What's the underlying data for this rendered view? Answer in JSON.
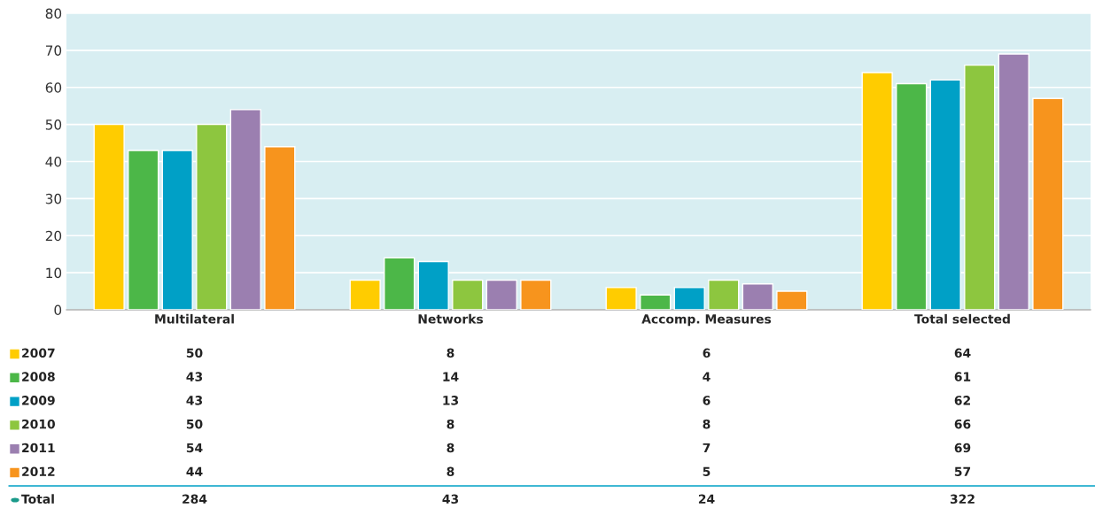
{
  "chart_data": {
    "type": "bar",
    "categories": [
      "Multilateral",
      "Networks",
      "Accomp. Measures",
      "Total selected"
    ],
    "series": [
      {
        "name": "2007",
        "color": "#ffcc00",
        "values": [
          50,
          8,
          6,
          64
        ]
      },
      {
        "name": "2008",
        "color": "#4cb748",
        "values": [
          43,
          14,
          4,
          61
        ]
      },
      {
        "name": "2009",
        "color": "#00a0c6",
        "values": [
          43,
          13,
          6,
          62
        ]
      },
      {
        "name": "2010",
        "color": "#8dc63f",
        "values": [
          50,
          8,
          8,
          66
        ]
      },
      {
        "name": "2011",
        "color": "#9b7fb0",
        "values": [
          54,
          8,
          7,
          69
        ]
      },
      {
        "name": "2012",
        "color": "#f7941d",
        "values": [
          44,
          8,
          5,
          57
        ]
      }
    ],
    "ylim": [
      0,
      80
    ],
    "yticks": [
      0,
      10,
      20,
      30,
      40,
      50,
      60,
      70,
      80
    ],
    "grid": "y",
    "legend": "bottom left",
    "data_labels": true,
    "annotations": [
      "Total",
      "284",
      "43",
      "24",
      "322"
    ]
  }
}
